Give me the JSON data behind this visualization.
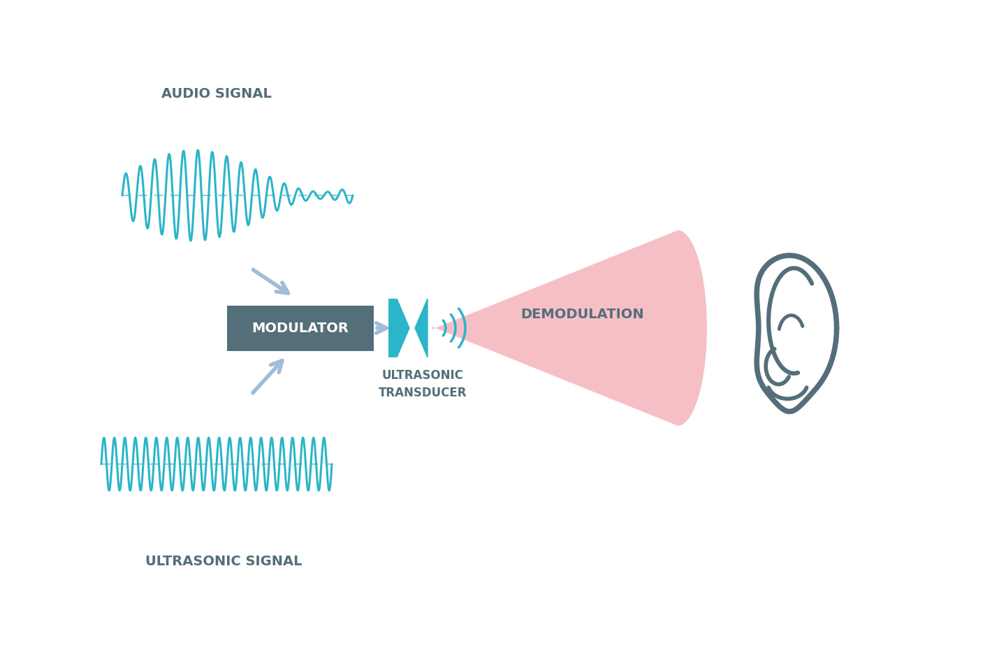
{
  "bg_color": "#ffffff",
  "wave_color": "#2bb5c8",
  "dash_color": "#a0cfe0",
  "arrow_color": "#a0bcd8",
  "modulator_bg": "#546e7a",
  "modulator_text": "#ffffff",
  "beam_color": "#f5b8c0",
  "demod_text_color": "#546e7a",
  "ear_color": "#546e7a",
  "label_color": "#546e7a",
  "audio_label": "AUDIO SIGNAL",
  "modulator_label": "MODULATOR",
  "transducer_label1": "ULTRASONIC",
  "transducer_label2": "TRANSDUCER",
  "demod_label": "DEMODULATION",
  "ultrasonic_label": "ULTRASONIC SIGNAL",
  "figsize": [
    14.4,
    9.6
  ],
  "dpi": 100
}
